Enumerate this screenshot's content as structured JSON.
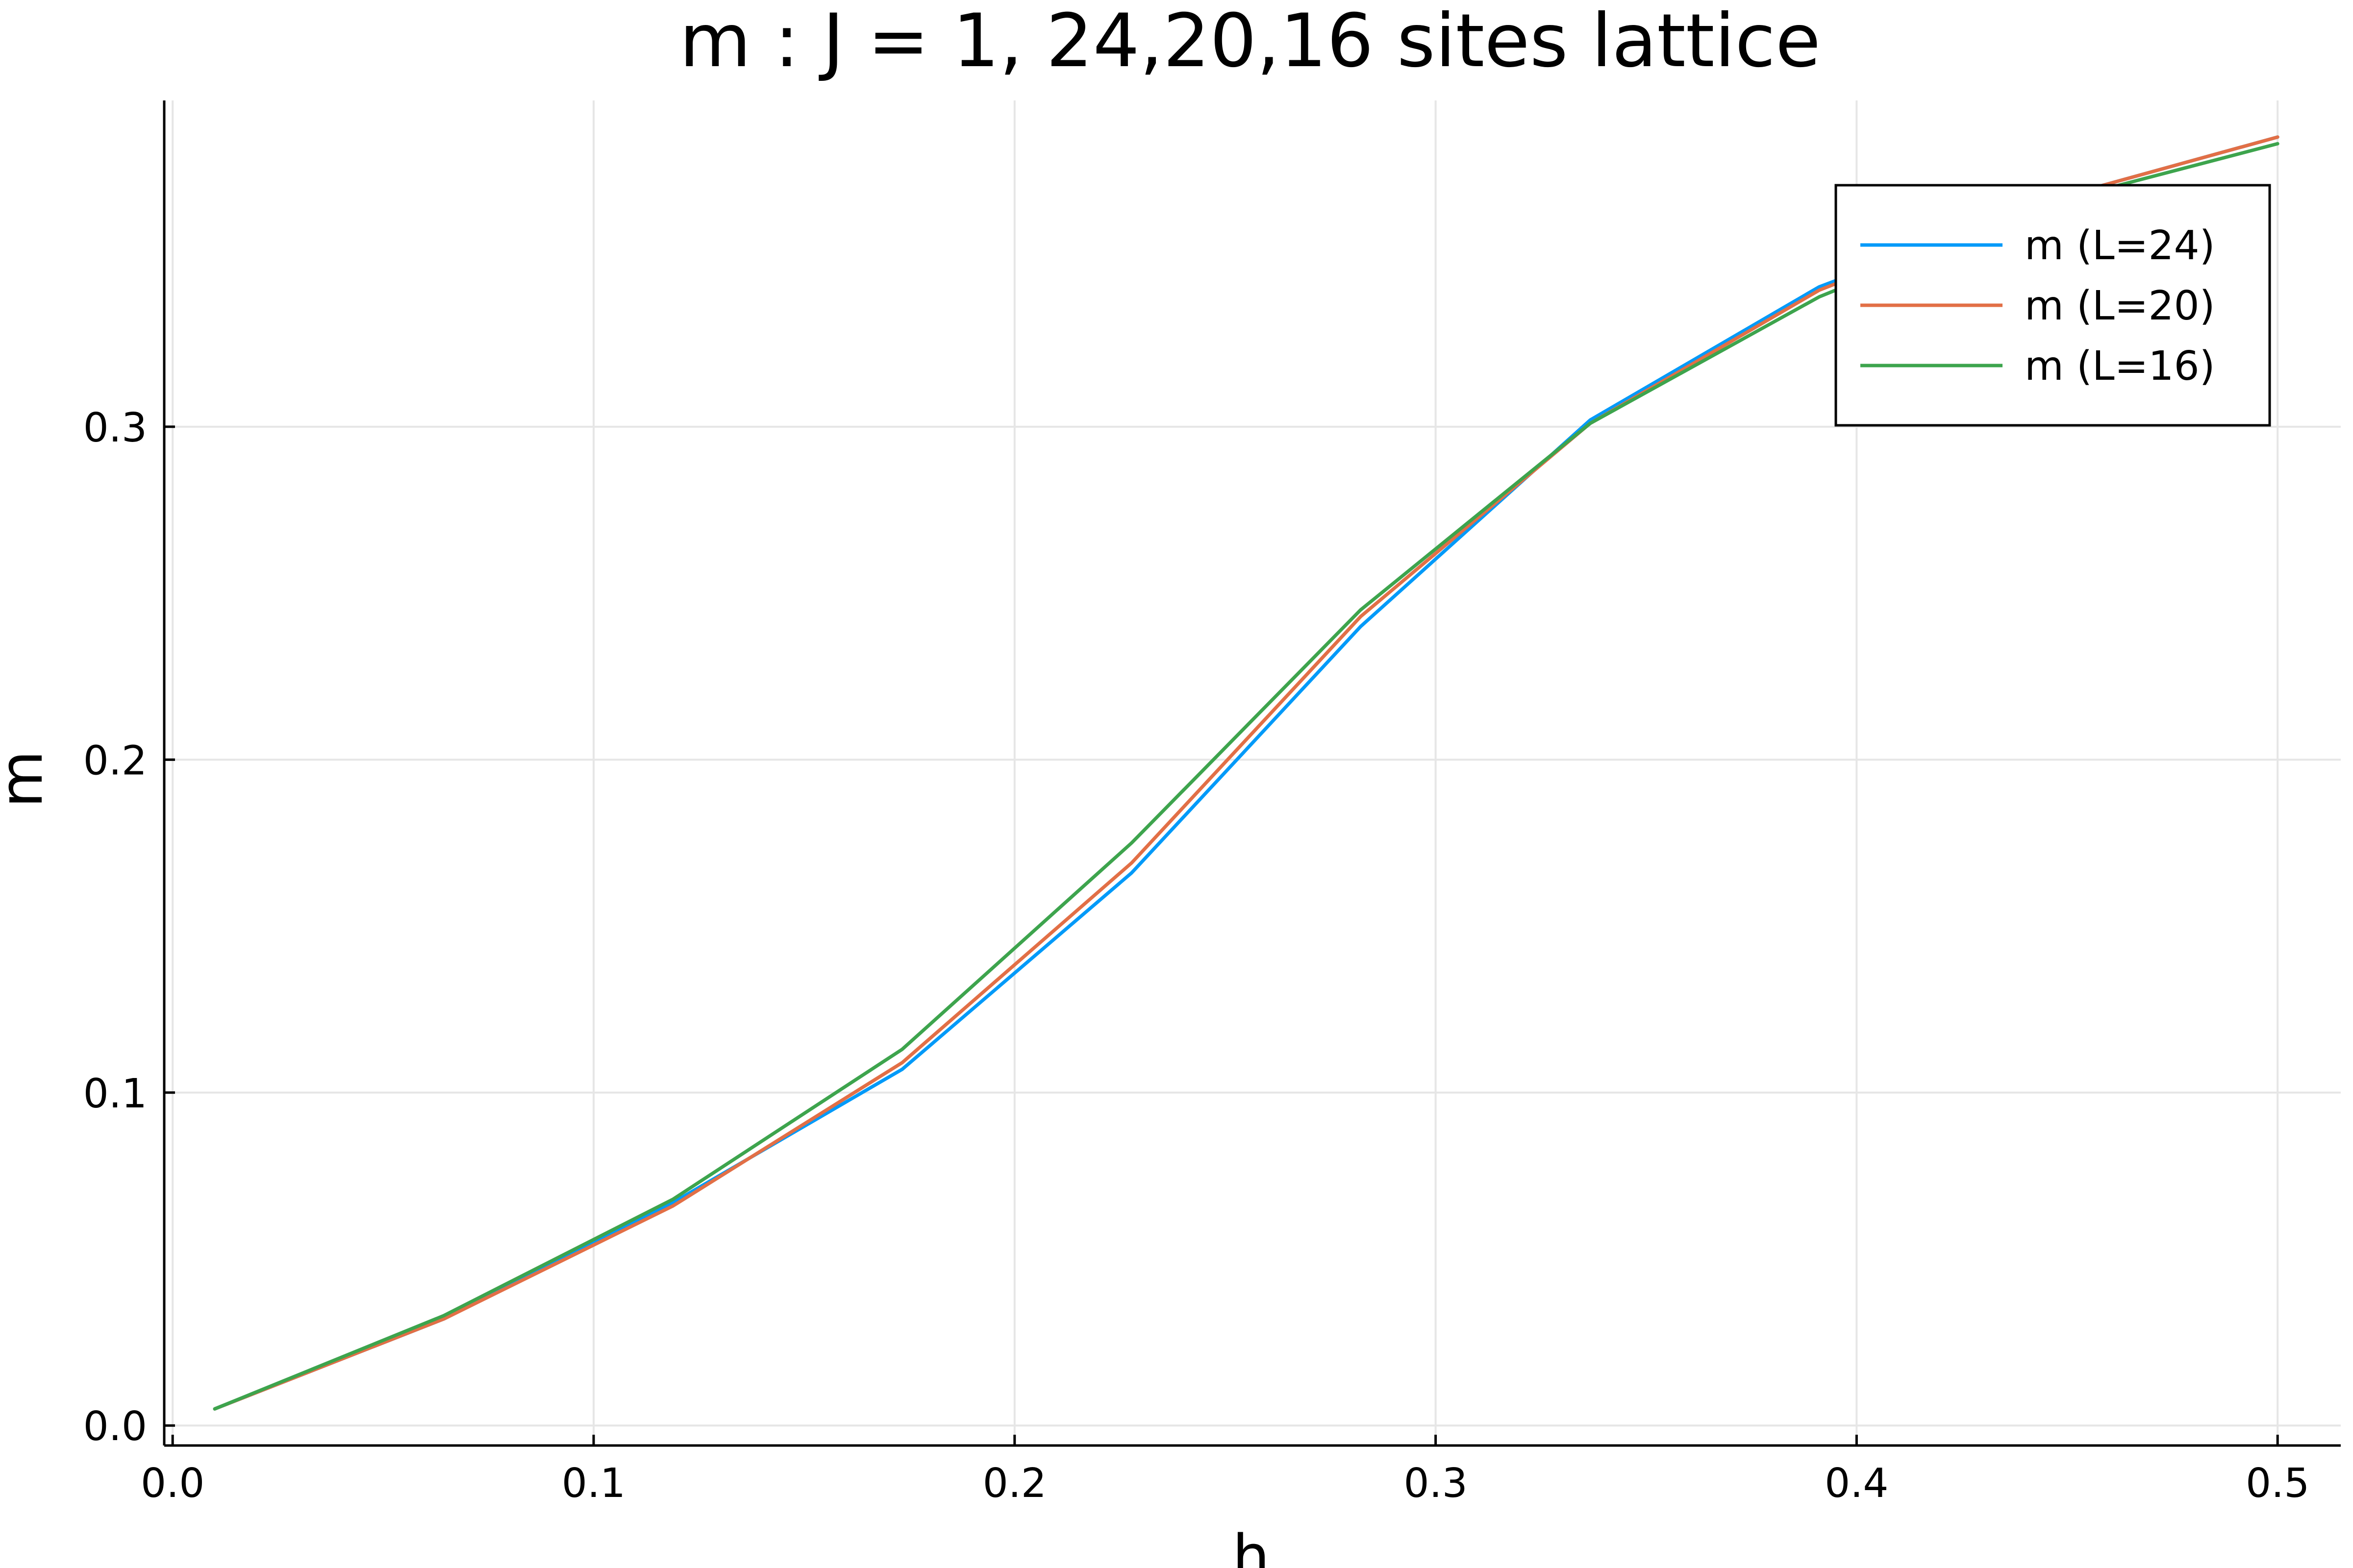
{
  "chart_data": {
    "type": "line",
    "title": "m : J = 1, 24,20,16 sites lattice",
    "xlabel": "h",
    "ylabel": "m",
    "xlim": [
      -0.002,
      0.515
    ],
    "ylim": [
      -0.006,
      0.398
    ],
    "xticks": [
      0.0,
      0.1,
      0.2,
      0.3,
      0.4,
      0.5
    ],
    "xtick_labels": [
      "0.0",
      "0.1",
      "0.2",
      "0.3",
      "0.4",
      "0.5"
    ],
    "yticks": [
      0.0,
      0.1,
      0.2,
      0.3
    ],
    "ytick_labels": [
      "0.0",
      "0.1",
      "0.2",
      "0.3"
    ],
    "grid": true,
    "legend_position": "top-right",
    "series": [
      {
        "name": "m (L=24)",
        "color": "#009af9",
        "x": [
          0.01,
          0.0644,
          0.1189,
          0.1733,
          0.2278,
          0.2822,
          0.3367,
          0.3911,
          0.4456,
          0.5
        ],
        "y": [
          0.005,
          0.032,
          0.067,
          0.107,
          0.166,
          0.24,
          0.302,
          0.342,
          0.368,
          0.387
        ]
      },
      {
        "name": "m (L=20)",
        "color": "#e26f46",
        "x": [
          0.01,
          0.0644,
          0.1189,
          0.1733,
          0.2278,
          0.2822,
          0.3367,
          0.3911,
          0.4456,
          0.5
        ],
        "y": [
          0.005,
          0.032,
          0.066,
          0.109,
          0.169,
          0.243,
          0.301,
          0.341,
          0.368,
          0.387
        ]
      },
      {
        "name": "m (L=16)",
        "color": "#3da44d",
        "x": [
          0.01,
          0.0644,
          0.1189,
          0.1733,
          0.2278,
          0.2822,
          0.3367,
          0.3911,
          0.4456,
          0.5
        ],
        "y": [
          0.005,
          0.033,
          0.068,
          0.113,
          0.175,
          0.245,
          0.301,
          0.339,
          0.367,
          0.385
        ]
      }
    ]
  }
}
